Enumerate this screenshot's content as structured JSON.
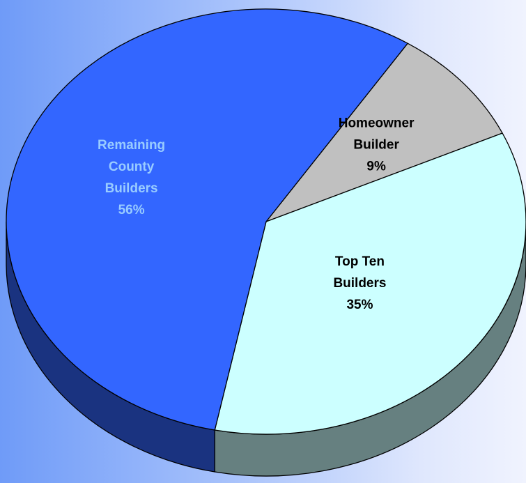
{
  "chart_data": {
    "type": "pie",
    "style": "3d",
    "legend": "none",
    "slices": [
      {
        "label_lines": [
          "Homeowner",
          "Builder",
          "9%"
        ],
        "value": 9,
        "color": "#c0c0c0",
        "side_color": "#8c8c8c",
        "label_color": "#000000"
      },
      {
        "label_lines": [
          "Top Ten",
          "Builders",
          "35%"
        ],
        "value": 35,
        "color": "#ccffff",
        "side_color": "#668080",
        "label_color": "#000000"
      },
      {
        "label_lines": [
          "Remaining",
          "County",
          "Builders",
          "56%"
        ],
        "value": 56,
        "color": "#3366ff",
        "side_color": "#1a3380",
        "label_color": "#99ccff"
      }
    ]
  }
}
